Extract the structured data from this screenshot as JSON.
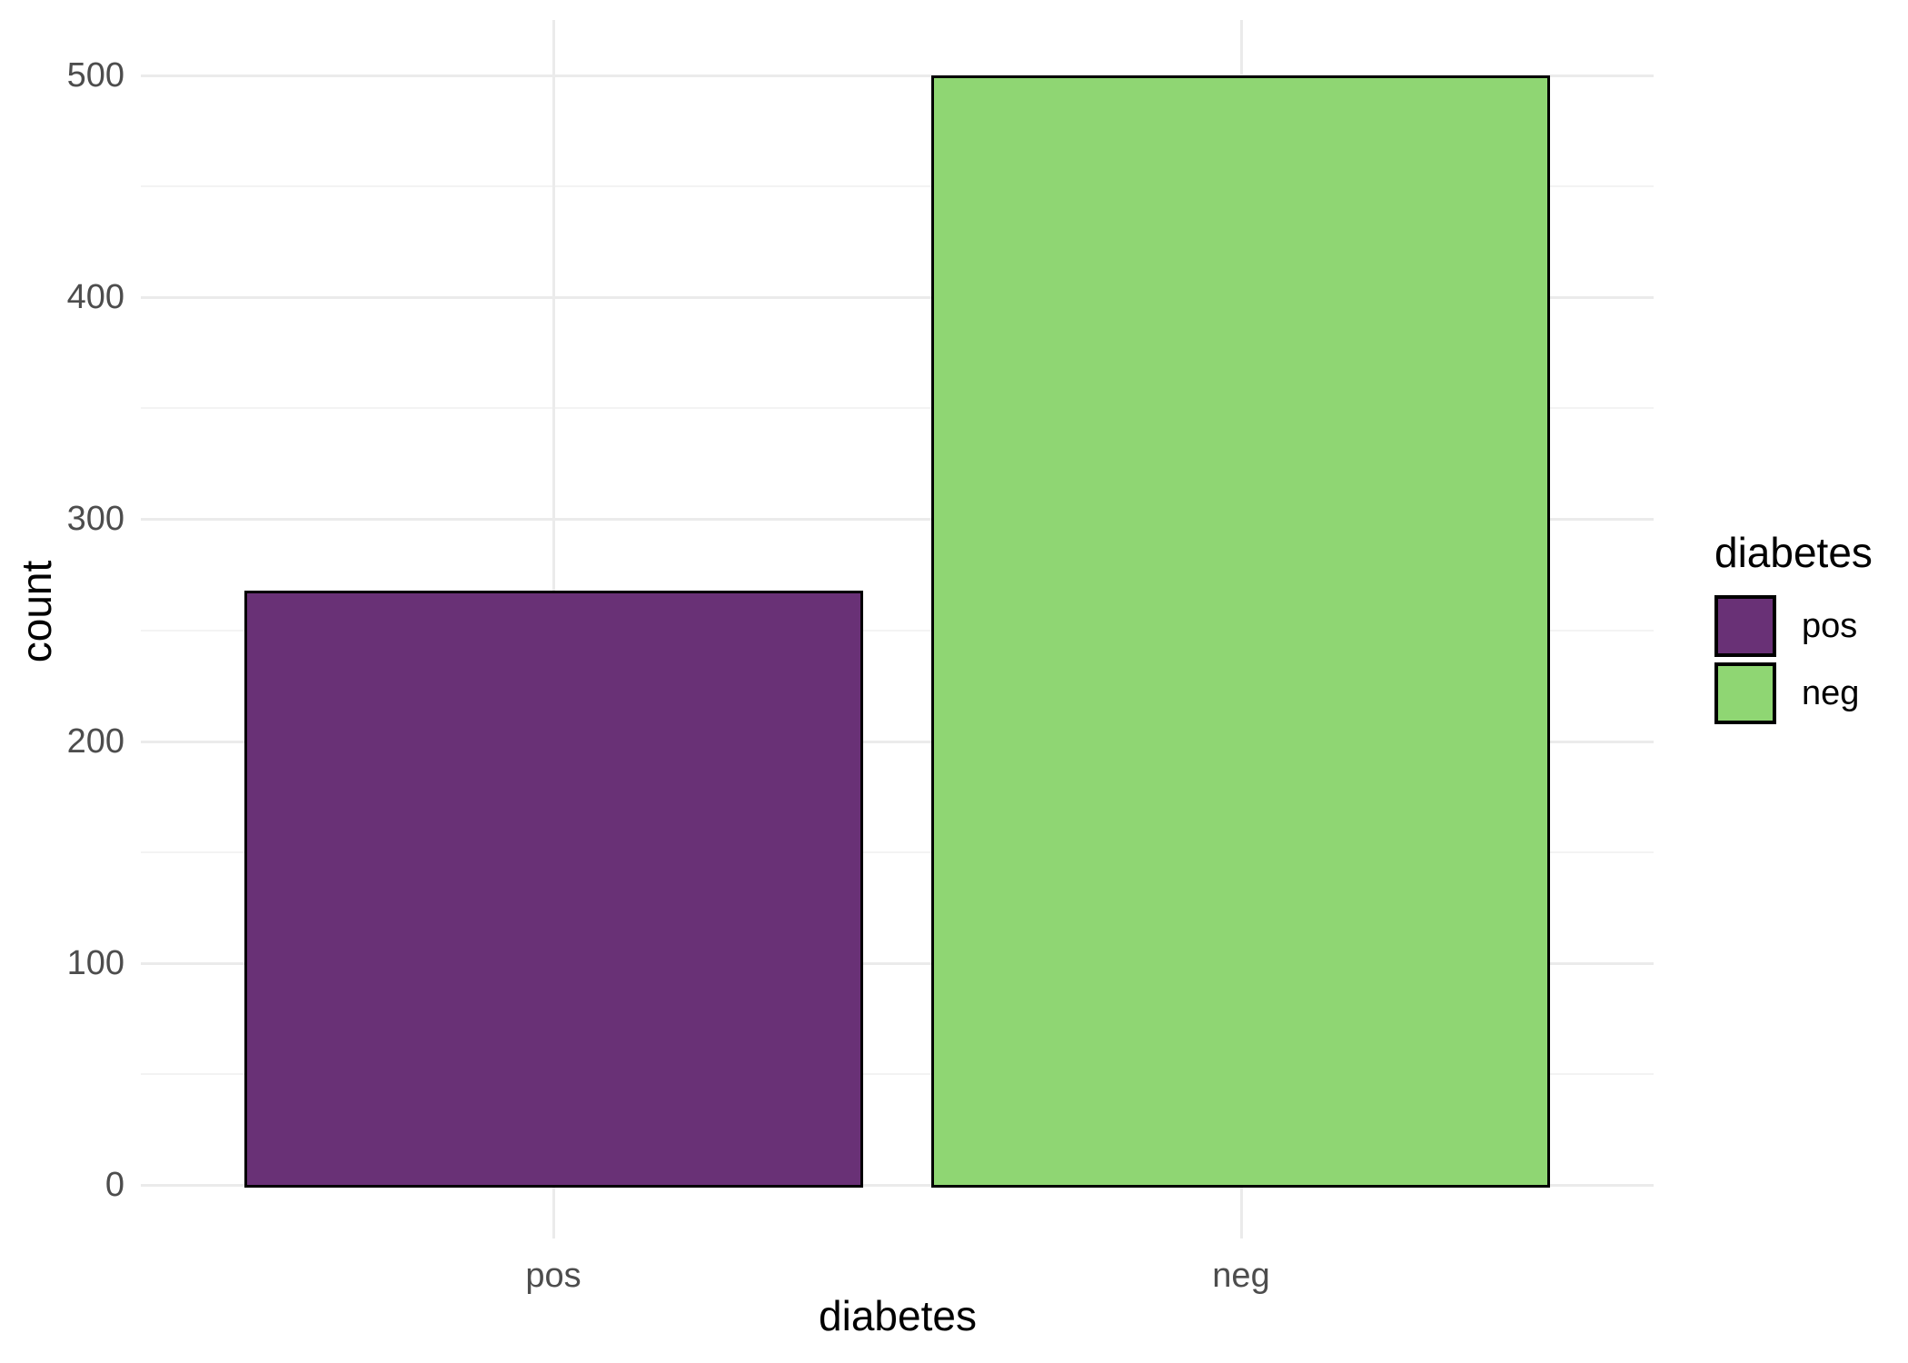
{
  "chart_data": {
    "type": "bar",
    "title": "",
    "xlabel": "diabetes",
    "ylabel": "count",
    "categories": [
      "pos",
      "neg"
    ],
    "values": [
      268,
      500
    ],
    "ylim": [
      0,
      500
    ],
    "y_major_ticks": [
      0,
      100,
      200,
      300,
      400,
      500
    ],
    "y_minor_ticks": [
      50,
      150,
      250,
      350,
      450
    ],
    "bar_width_fraction": 0.9,
    "grid": "horizontal major+minor and vertical major gridlines, light gray on white, no axis lines",
    "legend_position": "right",
    "series_colors": {
      "pos": "#693176",
      "neg": "#8FD673"
    },
    "bar_border_color": "#000000",
    "legend": {
      "title": "diabetes",
      "entries": [
        {
          "label": "pos",
          "color": "#693176"
        },
        {
          "label": "neg",
          "color": "#8FD673"
        }
      ]
    }
  },
  "colors": {
    "background": "#FFFFFF",
    "major_gridline": "#EBEBEB",
    "minor_gridline": "#F3F3F3",
    "tick_label": "#4D4D4D",
    "axis_title": "#000000"
  }
}
